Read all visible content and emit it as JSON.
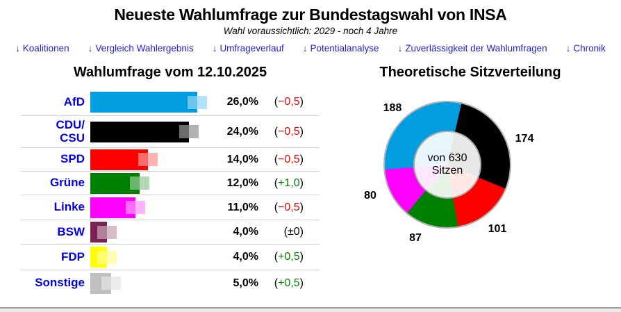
{
  "header": {
    "title": "Neueste Wahlumfrage zur Bundestagswahl von INSA",
    "subtitle": "Wahl voraussichtlich: 2029 - noch 4 Jahre"
  },
  "nav": {
    "arrow": "↓",
    "link_color": "#2222cc",
    "items": [
      {
        "label": "Koalitionen"
      },
      {
        "label": "Vergleich Wahlergebnis"
      },
      {
        "label": "Umfrageverlauf"
      },
      {
        "label": "Potentialanalyse"
      },
      {
        "label": "Zuverlässigkeit der Wahlumfragen"
      },
      {
        "label": "Chronik"
      }
    ]
  },
  "left_chart": {
    "title": "Wahlumfrage vom 12.10.2025",
    "party_label_color": "#0000ee",
    "change_wrap": [
      "(",
      ")"
    ],
    "change_colors": {
      "down": "#ee0000",
      "up": "#008000",
      "zero": "#000000"
    },
    "rows": [
      {
        "party": "AfD",
        "value_label": "26,0%",
        "pct": 26.0,
        "change_label": "−0,5",
        "change_type": "down",
        "color": "#009ee0"
      },
      {
        "party": "CDU/CSU",
        "value_label": "24,0%",
        "pct": 24.0,
        "change_label": "−0,5",
        "change_type": "down",
        "color": "#000000"
      },
      {
        "party": "SPD",
        "value_label": "14,0%",
        "pct": 14.0,
        "change_label": "−0,5",
        "change_type": "down",
        "color": "#ff0000"
      },
      {
        "party": "Grüne",
        "value_label": "12,0%",
        "pct": 12.0,
        "change_label": "+1,0",
        "change_type": "up",
        "color": "#008000"
      },
      {
        "party": "Linke",
        "value_label": "11,0%",
        "pct": 11.0,
        "change_label": "−0,5",
        "change_type": "down",
        "color": "#ff00ff"
      },
      {
        "party": "BSW",
        "value_label": "4,0%",
        "pct": 4.0,
        "change_label": "±0",
        "change_type": "zero",
        "color": "#7a2350"
      },
      {
        "party": "FDP",
        "value_label": "4,0%",
        "pct": 4.0,
        "change_label": "+0,5",
        "change_type": "up",
        "color": "#ffff00"
      },
      {
        "party": "Sonstige",
        "value_label": "5,0%",
        "pct": 5.0,
        "change_label": "+0,5",
        "change_type": "up",
        "color": "#c0c0c0"
      }
    ]
  },
  "right_chart": {
    "title": "Theoretische Sitzverteilung",
    "total_seats": 630,
    "center_lines": [
      "von 630",
      "Sitzen"
    ],
    "segments": [
      {
        "party": "AfD",
        "seats": 188,
        "color": "#009ee0"
      },
      {
        "party": "CDU/CSU",
        "seats": 174,
        "color": "#000000"
      },
      {
        "party": "SPD",
        "seats": 101,
        "color": "#ff0000"
      },
      {
        "party": "Grüne",
        "seats": 87,
        "color": "#008000"
      },
      {
        "party": "Linke",
        "seats": 80,
        "color": "#ff00ff"
      }
    ]
  },
  "chart_data": [
    {
      "type": "bar",
      "orientation": "horizontal",
      "title": "Wahlumfrage vom 12.10.2025",
      "categories": [
        "AfD",
        "CDU/CSU",
        "SPD",
        "Grüne",
        "Linke",
        "BSW",
        "FDP",
        "Sonstige"
      ],
      "values": [
        26.0,
        24.0,
        14.0,
        12.0,
        11.0,
        4.0,
        4.0,
        5.0
      ],
      "changes": [
        -0.5,
        -0.5,
        -0.5,
        1.0,
        -0.5,
        0,
        0.5,
        0.5
      ],
      "unit": "%",
      "xlim": [
        0,
        30
      ],
      "grid": false,
      "colors": [
        "#009ee0",
        "#000000",
        "#ff0000",
        "#008000",
        "#ff00ff",
        "#7a2350",
        "#ffff00",
        "#c0c0c0"
      ]
    },
    {
      "type": "pie",
      "subtype": "donut",
      "title": "Theoretische Sitzverteilung",
      "labels": [
        "CDU/CSU",
        "SPD",
        "Grüne",
        "Linke",
        "AfD"
      ],
      "values": [
        174,
        101,
        87,
        80,
        188
      ],
      "colors": [
        "#000000",
        "#ff0000",
        "#008000",
        "#ff00ff",
        "#009ee0"
      ],
      "total": 630,
      "center_label": "von 630 Sitzen",
      "start_angle_deg": 13,
      "direction": "clockwise",
      "legend": false
    }
  ]
}
